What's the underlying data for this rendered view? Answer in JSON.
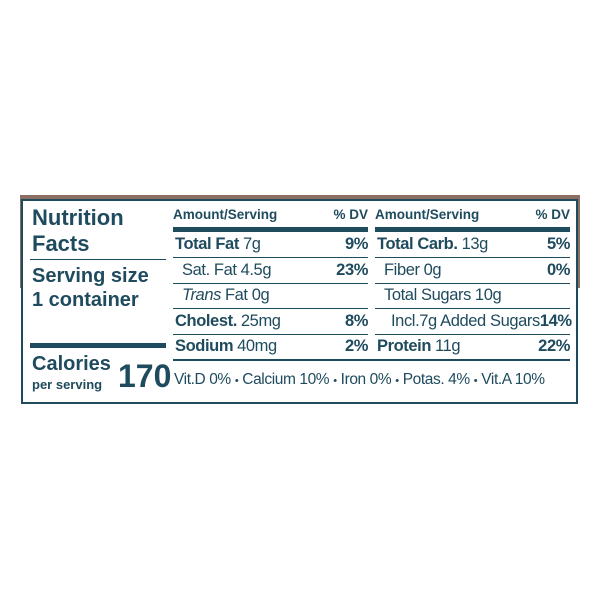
{
  "header": {
    "title_line1": "Nutrition",
    "title_line2": "Facts",
    "serving_label": "Serving size",
    "serving_value": "1 container",
    "calories_label": "Calories",
    "calories_sub": "per serving",
    "calories_value": "170"
  },
  "columns": [
    {
      "head_amount": "Amount/Serving",
      "head_dv": "% DV",
      "rows": [
        {
          "style": "bold",
          "label": "Total Fat",
          "amount": "7g",
          "dv": "9%"
        },
        {
          "style": "sub",
          "label": "Sat. Fat",
          "amount": "4.5g",
          "dv": "23%"
        },
        {
          "style": "sub-italic",
          "label": "Trans",
          "amount": "Fat 0g"
        },
        {
          "style": "bold",
          "label": "Cholest.",
          "amount": "25mg",
          "dv": "8%"
        },
        {
          "style": "bold",
          "label": "Sodium",
          "amount": "40mg",
          "dv": "2%"
        }
      ]
    },
    {
      "head_amount": "Amount/Serving",
      "head_dv": "% DV",
      "rows": [
        {
          "style": "bold",
          "label": "Total Carb.",
          "amount": "13g",
          "dv": "5%"
        },
        {
          "style": "sub",
          "label": "Fiber",
          "amount": "0g",
          "dv": "0%"
        },
        {
          "style": "sub",
          "label": "Total Sugars",
          "amount": "10g"
        },
        {
          "style": "subsub",
          "label": "Incl.7g Added Sugars",
          "dv": "14%"
        },
        {
          "style": "bold",
          "label": "Protein",
          "amount": "11g",
          "dv": "22%"
        }
      ]
    }
  ],
  "vitamins": {
    "separator": "•",
    "items": [
      "Vit.D 0%",
      "Calcium 10%",
      "Iron 0%",
      "Potas. 4%",
      "Vit.A 10%"
    ]
  },
  "colors": {
    "ink": "#1f4b5e",
    "band": "#8a6f62"
  }
}
